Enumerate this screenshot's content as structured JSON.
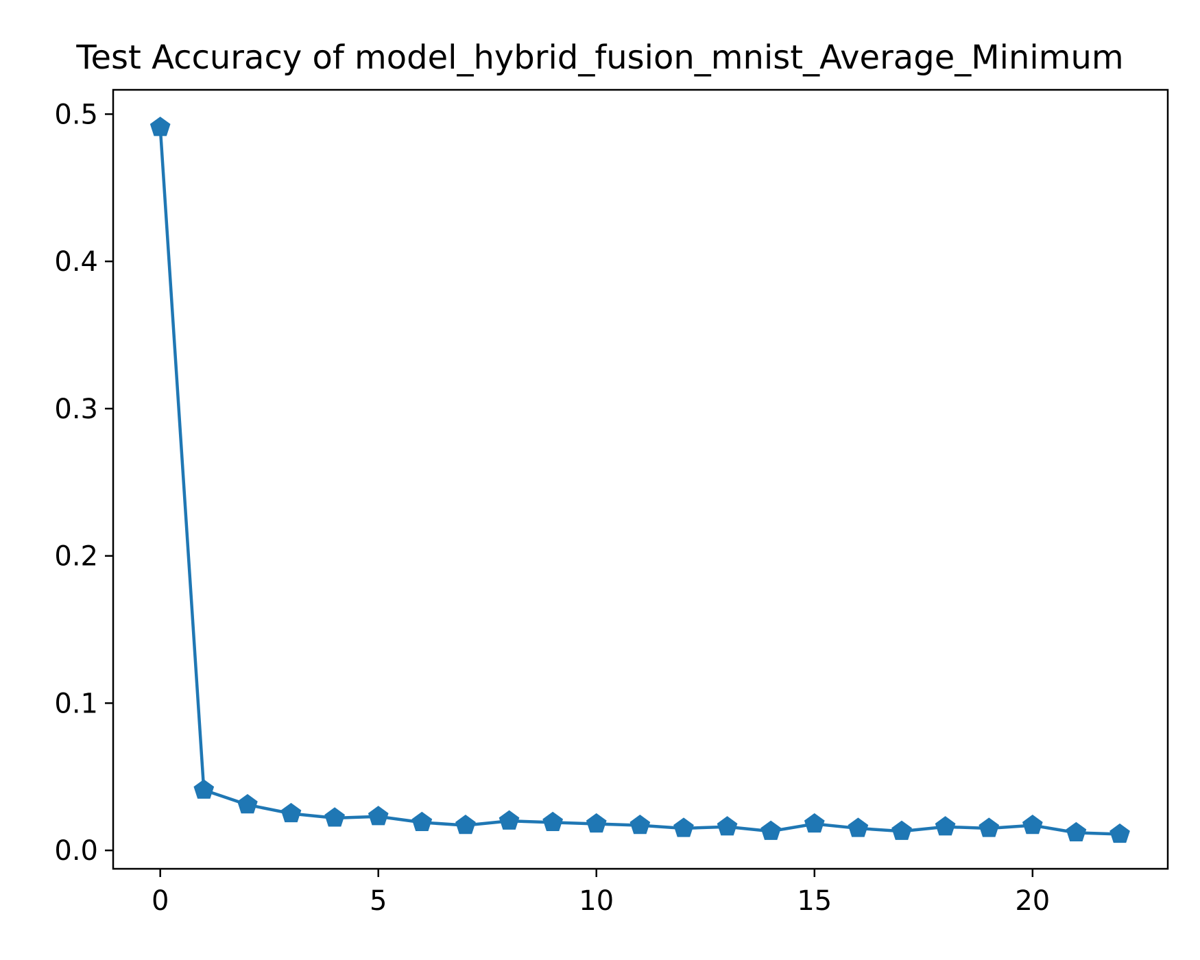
{
  "chart_data": {
    "type": "line",
    "title": "Test Accuracy of model_hybrid_fusion_mnist_Average_Minimum",
    "xlabel": "",
    "ylabel": "",
    "x": [
      0,
      1,
      2,
      3,
      4,
      5,
      6,
      7,
      8,
      9,
      10,
      11,
      12,
      13,
      14,
      15,
      16,
      17,
      18,
      19,
      20,
      21,
      22
    ],
    "series": [
      {
        "values": [
          0.491,
          0.041,
          0.031,
          0.025,
          0.022,
          0.023,
          0.019,
          0.017,
          0.02,
          0.019,
          0.018,
          0.017,
          0.015,
          0.016,
          0.013,
          0.018,
          0.015,
          0.013,
          0.016,
          0.015,
          0.017,
          0.012,
          0.011
        ],
        "color": "#1f77b4",
        "marker": "pentagon"
      }
    ],
    "xlim": [
      -1.08,
      23.1
    ],
    "ylim": [
      -0.0125,
      0.5165
    ],
    "xticks": [
      0,
      5,
      10,
      15,
      20
    ],
    "xtick_labels": [
      "0",
      "5",
      "10",
      "15",
      "20"
    ],
    "yticks": [
      0.0,
      0.1,
      0.2,
      0.3,
      0.4,
      0.5
    ],
    "ytick_labels": [
      "0.0",
      "0.1",
      "0.2",
      "0.3",
      "0.4",
      "0.5"
    ],
    "grid": false,
    "legend": "none"
  }
}
